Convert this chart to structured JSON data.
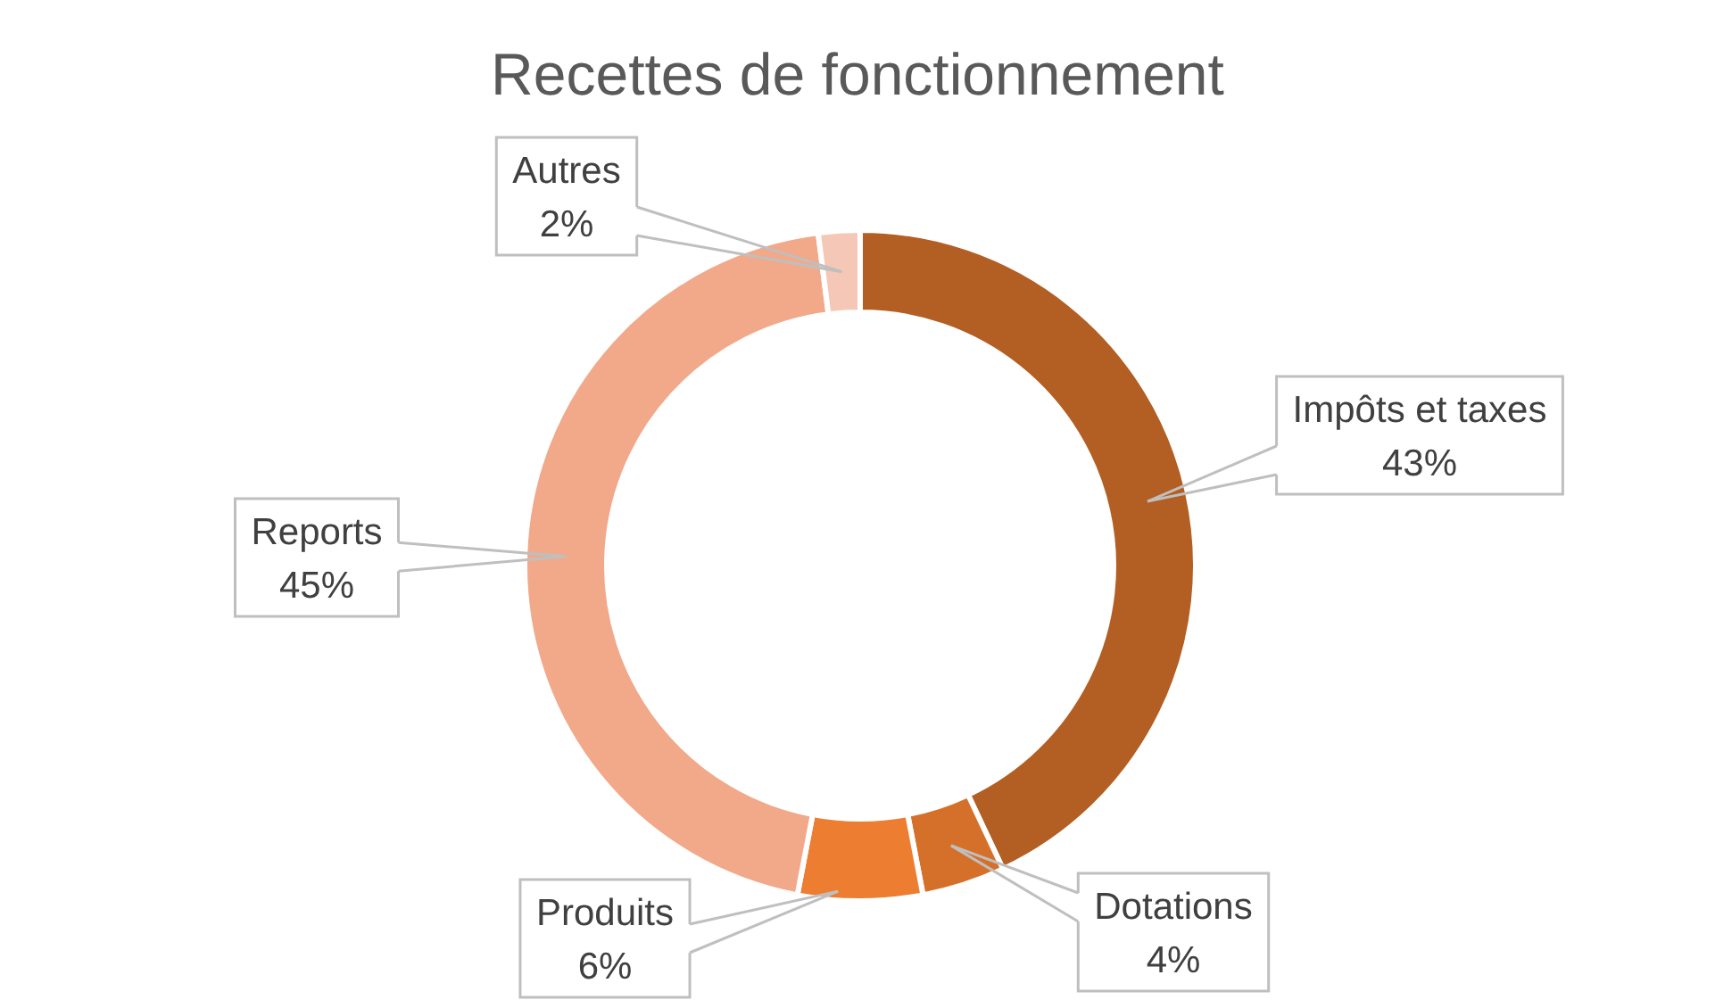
{
  "chart_data": {
    "type": "donut",
    "title": "Recettes de fonctionnement",
    "categories": [
      "Impôts et taxes",
      "Dotations",
      "Produits",
      "Reports",
      "Autres"
    ],
    "values": [
      43,
      4,
      6,
      45,
      2
    ],
    "value_labels": [
      "43%",
      "4%",
      "6%",
      "45%",
      "2%"
    ],
    "colors": [
      "#b35e22",
      "#d4702a",
      "#ed7d31",
      "#f1a98a",
      "#f5c7b6"
    ]
  }
}
